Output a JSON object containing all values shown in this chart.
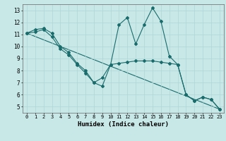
{
  "xlabel": "Humidex (Indice chaleur)",
  "background_color": "#c8e8e8",
  "grid_color": "#b0d4d4",
  "line_color": "#1a6b6b",
  "xlim": [
    -0.5,
    23.5
  ],
  "ylim": [
    4.5,
    13.5
  ],
  "yticks": [
    5,
    6,
    7,
    8,
    9,
    10,
    11,
    12,
    13
  ],
  "xticks": [
    0,
    1,
    2,
    3,
    4,
    5,
    6,
    7,
    8,
    9,
    10,
    11,
    12,
    13,
    14,
    15,
    16,
    17,
    18,
    19,
    20,
    21,
    22,
    23
  ],
  "line1_x": [
    0,
    1,
    2,
    3,
    4,
    5,
    6,
    7,
    8,
    9,
    10,
    11,
    12,
    13,
    14,
    15,
    16,
    17,
    18,
    19,
    20,
    21,
    22,
    23
  ],
  "line1_y": [
    11.1,
    11.4,
    11.5,
    11.1,
    10.0,
    9.5,
    8.6,
    8.0,
    7.0,
    6.7,
    8.5,
    11.8,
    12.4,
    10.2,
    11.8,
    13.2,
    12.1,
    9.2,
    8.5,
    6.0,
    5.5,
    5.8,
    5.6,
    4.8
  ],
  "line2_x": [
    0,
    1,
    2,
    3,
    4,
    5,
    6,
    7,
    8,
    9,
    10,
    11,
    12,
    13,
    14,
    15,
    16,
    17,
    18,
    19,
    20,
    21,
    22,
    23
  ],
  "line2_y": [
    11.1,
    11.2,
    11.4,
    10.8,
    9.8,
    9.3,
    8.5,
    7.8,
    7.0,
    7.4,
    8.5,
    8.6,
    8.7,
    8.8,
    8.8,
    8.8,
    8.7,
    8.6,
    8.5,
    6.0,
    5.5,
    5.8,
    5.6,
    4.8
  ],
  "line3_x": [
    0,
    23
  ],
  "line3_y": [
    11.1,
    4.8
  ]
}
